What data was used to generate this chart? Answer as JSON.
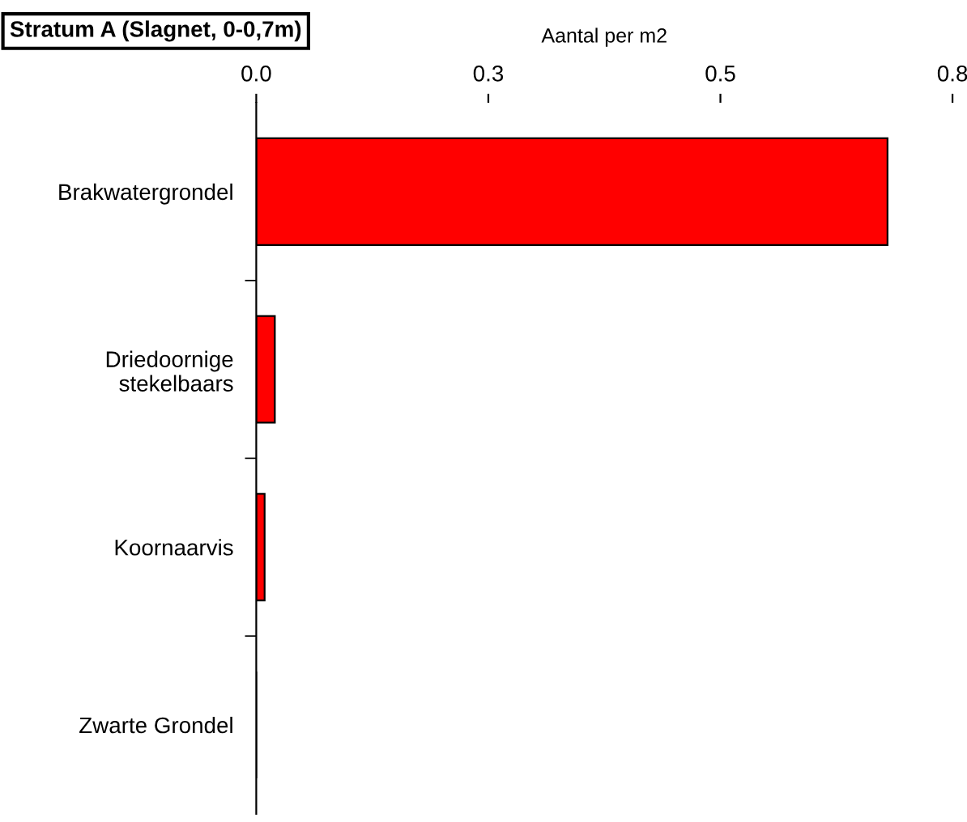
{
  "chart_data": {
    "type": "bar",
    "orientation": "horizontal",
    "title": "Stratum A (Slagnet, 0-0,7m)",
    "xlabel": "Aantal per m2",
    "categories": [
      "Brakwatergrondel",
      "Driedoornige\nstekelbaars",
      "Koornaarvis",
      "Zwarte Grondel"
    ],
    "values": [
      0.68,
      0.02,
      0.009,
      0
    ],
    "color": "#ff0000",
    "xlim": [
      0,
      0.75
    ],
    "xticks": [
      {
        "value": 0,
        "label": "0.0"
      },
      {
        "value": 0.25,
        "label": "0.3"
      },
      0.5,
      {
        "value": 0.75,
        "label": "0.8"
      }
    ],
    "grid": false,
    "legend": false
  }
}
